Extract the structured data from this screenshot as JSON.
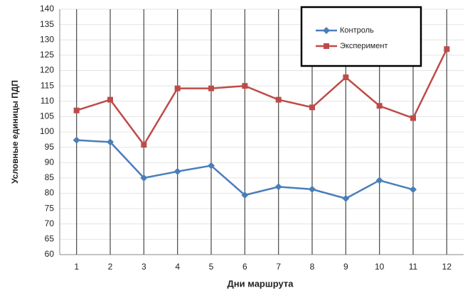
{
  "chart_data": {
    "type": "line",
    "y_label": "Условные единицы ПДП",
    "x_label": "Дни маршрута",
    "categories": [
      "1",
      "2",
      "3",
      "4",
      "5",
      "6",
      "7",
      "8",
      "9",
      "10",
      "11",
      "12"
    ],
    "series": [
      {
        "name": "Контроль",
        "color": "#4a7ebb",
        "marker": "diamond",
        "values": [
          97.3,
          96.7,
          85,
          87.1,
          89,
          79.4,
          82.1,
          81.3,
          78.3,
          84.2,
          81.2,
          null
        ]
      },
      {
        "name": "Эксперимент",
        "color": "#be4b48",
        "marker": "square",
        "values": [
          107,
          110.5,
          95.8,
          114.2,
          114.2,
          115,
          110.5,
          108,
          117.8,
          108.5,
          104.5,
          127
        ]
      }
    ],
    "ylim": [
      60,
      140
    ],
    "yticks": [
      60,
      65,
      70,
      75,
      80,
      85,
      90,
      95,
      100,
      105,
      110,
      115,
      120,
      125,
      130,
      135,
      140
    ],
    "xgrid": true,
    "ygrid": true,
    "legend": "top-right"
  }
}
